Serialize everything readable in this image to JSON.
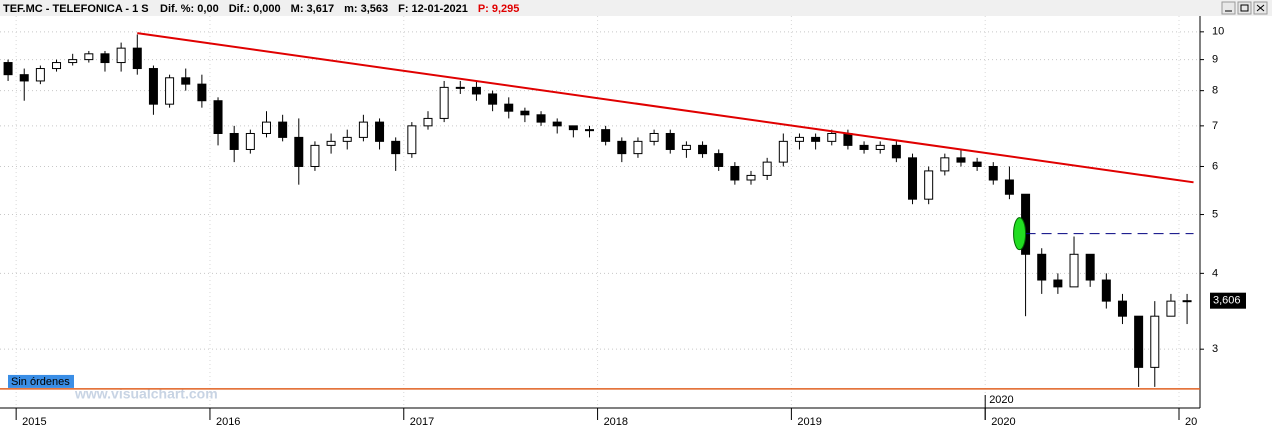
{
  "chart_data": {
    "type": "candlestick",
    "title": "TEF.MC - TELEFONICA - 1 S",
    "header": [
      "Dif. %: 0,00",
      "Dif.: 0,000",
      "M: 3,617",
      "m: 3,563",
      "F: 12-01-2021"
    ],
    "header_highlight": "P: 9,295",
    "order_label": "Sin órdenes",
    "watermark": "www.visualchart.com",
    "x_marker_label": "2020",
    "categories": [
      null,
      null,
      null,
      null,
      null,
      null,
      null,
      null,
      null,
      null,
      null,
      null,
      null,
      null,
      null,
      null,
      null,
      null,
      null,
      null,
      null,
      null,
      null,
      null,
      null,
      null,
      null,
      null,
      null,
      null,
      null,
      null,
      null,
      null,
      null,
      null,
      null,
      null,
      null,
      null,
      null,
      null,
      null,
      null,
      null,
      null,
      null,
      null,
      null,
      null,
      null,
      null,
      null,
      null,
      null,
      null,
      null,
      null,
      null,
      null,
      null,
      null,
      null,
      null,
      null,
      null,
      null,
      null,
      null,
      null,
      null,
      null,
      null,
      null
    ],
    "open": [
      8.9,
      8.5,
      8.3,
      8.7,
      8.9,
      9.0,
      9.2,
      8.9,
      9.4,
      8.7,
      7.6,
      8.4,
      8.2,
      7.7,
      6.8,
      6.4,
      6.8,
      7.1,
      6.7,
      6.0,
      6.5,
      6.6,
      6.7,
      7.1,
      6.6,
      6.3,
      7.0,
      7.2,
      8.1,
      8.1,
      7.9,
      7.6,
      7.4,
      7.3,
      7.1,
      7.0,
      6.9,
      6.9,
      6.6,
      6.3,
      6.6,
      6.8,
      6.4,
      6.5,
      6.3,
      6.0,
      5.7,
      5.8,
      6.1,
      6.6,
      6.7,
      6.6,
      6.8,
      6.5,
      6.4,
      6.5,
      6.2,
      5.3,
      5.9,
      6.2,
      6.1,
      6.0,
      5.7,
      5.4,
      4.3,
      3.9,
      3.8,
      4.3,
      3.9,
      3.6,
      3.4,
      2.8,
      3.4,
      3.6
    ],
    "high": [
      9.0,
      8.7,
      8.8,
      9.0,
      9.2,
      9.3,
      9.3,
      9.6,
      9.9,
      8.8,
      8.5,
      8.7,
      8.5,
      7.8,
      7.0,
      6.9,
      7.4,
      7.3,
      7.2,
      6.6,
      6.8,
      6.9,
      7.3,
      7.2,
      6.7,
      7.1,
      7.4,
      8.3,
      8.3,
      8.3,
      8.0,
      7.8,
      7.5,
      7.4,
      7.2,
      7.0,
      7.0,
      7.0,
      6.7,
      6.7,
      6.9,
      6.9,
      6.6,
      6.6,
      6.4,
      6.1,
      5.9,
      6.2,
      6.8,
      6.8,
      6.8,
      6.9,
      6.9,
      6.6,
      6.6,
      6.6,
      6.3,
      6.0,
      6.3,
      6.4,
      6.2,
      6.1,
      6.0,
      5.4,
      4.4,
      4.0,
      4.6,
      4.3,
      4.0,
      3.7,
      3.4,
      3.6,
      3.7,
      3.7
    ],
    "low": [
      8.3,
      7.7,
      8.2,
      8.6,
      8.8,
      8.9,
      8.6,
      8.6,
      8.5,
      7.3,
      7.5,
      8.0,
      7.5,
      6.5,
      6.1,
      6.3,
      6.7,
      6.6,
      5.6,
      5.9,
      6.3,
      6.4,
      6.6,
      6.4,
      5.9,
      6.2,
      6.9,
      7.1,
      7.9,
      7.7,
      7.4,
      7.2,
      7.1,
      7.0,
      6.8,
      6.7,
      6.7,
      6.5,
      6.1,
      6.2,
      6.5,
      6.3,
      6.2,
      6.2,
      5.9,
      5.6,
      5.6,
      5.7,
      6.0,
      6.4,
      6.4,
      6.5,
      6.4,
      6.3,
      6.3,
      6.1,
      5.2,
      5.2,
      5.8,
      6.0,
      5.9,
      5.6,
      5.3,
      3.4,
      3.7,
      3.7,
      3.8,
      3.8,
      3.5,
      3.3,
      2.6,
      2.6,
      3.4,
      3.3
    ],
    "close": [
      8.5,
      8.3,
      8.7,
      8.9,
      9.0,
      9.2,
      8.9,
      9.4,
      8.7,
      7.6,
      8.4,
      8.2,
      7.7,
      6.8,
      6.4,
      6.8,
      7.1,
      6.7,
      6.0,
      6.5,
      6.6,
      6.7,
      7.1,
      6.6,
      6.3,
      7.0,
      7.2,
      8.1,
      8.1,
      7.9,
      7.6,
      7.4,
      7.3,
      7.1,
      7.0,
      6.9,
      6.9,
      6.6,
      6.3,
      6.6,
      6.8,
      6.4,
      6.5,
      6.3,
      6.0,
      5.7,
      5.8,
      6.1,
      6.6,
      6.7,
      6.6,
      6.8,
      6.5,
      6.4,
      6.5,
      6.2,
      5.3,
      5.9,
      6.2,
      6.1,
      6.0,
      5.7,
      5.4,
      4.3,
      3.9,
      3.8,
      4.3,
      3.9,
      3.6,
      3.4,
      2.8,
      3.4,
      3.6,
      3.606
    ],
    "last_price": {
      "value": 3.606,
      "label": "3,606"
    },
    "trendline": {
      "color": "#e00000",
      "x": [
        8,
        73.4
      ],
      "values": [
        9.95,
        5.65
      ]
    },
    "target_line": {
      "color": "#000080",
      "x": [
        63,
        73.4
      ],
      "values": [
        4.65,
        4.65
      ]
    },
    "order_line": {
      "color": "#e06020",
      "value": 2.58
    },
    "ylim": [
      2.4,
      10.7
    ],
    "log_scale": true,
    "yticks": [
      3,
      4,
      5,
      6,
      7,
      8,
      9,
      10
    ],
    "xlim": [
      -0.5,
      73.8
    ],
    "xticks": [
      {
        "value": 0.5,
        "label": "2015"
      },
      {
        "value": 12.5,
        "label": "2016"
      },
      {
        "value": 24.5,
        "label": "2017"
      },
      {
        "value": 36.5,
        "label": "2018"
      },
      {
        "value": 48.5,
        "label": "2019"
      },
      {
        "value": 60.5,
        "label": "2020"
      },
      {
        "value": 72.5,
        "label": "20"
      }
    ],
    "grid": true,
    "up_color": "#ffffff",
    "down_color": "#000000"
  }
}
